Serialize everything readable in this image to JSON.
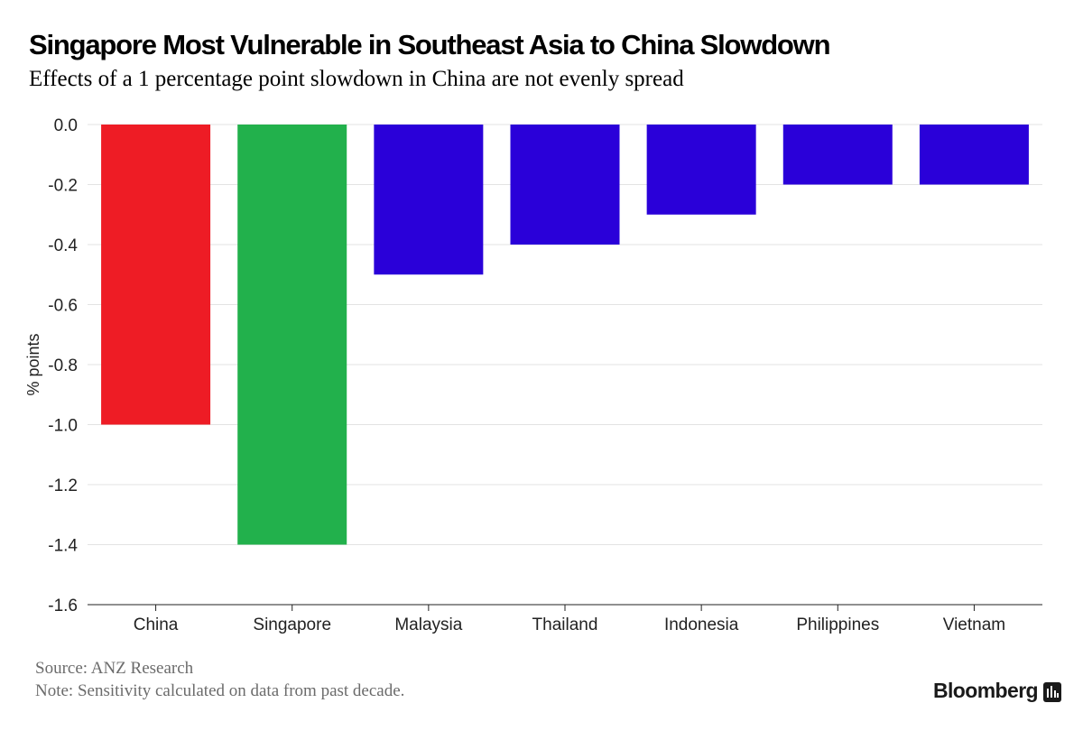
{
  "chart_data": {
    "type": "bar",
    "title": "Singapore Most Vulnerable in Southeast Asia to China Slowdown",
    "subtitle": "Effects of a 1 percentage point slowdown in China are not evenly spread",
    "categories": [
      "China",
      "Singapore",
      "Malaysia",
      "Thailand",
      "Indonesia",
      "Philippines",
      "Vietnam"
    ],
    "values": [
      -1.0,
      -1.4,
      -0.5,
      -0.4,
      -0.3,
      -0.2,
      -0.2
    ],
    "colors": [
      "#ee1c25",
      "#22b14c",
      "#2a00d9",
      "#2a00d9",
      "#2a00d9",
      "#2a00d9",
      "#2a00d9"
    ],
    "xlabel": "",
    "ylabel": "% points",
    "ylim": [
      -1.6,
      0.0
    ],
    "yticks": [
      "0.0",
      "-0.2",
      "-0.4",
      "-0.6",
      "-0.8",
      "-1.0",
      "-1.2",
      "-1.4",
      "-1.6"
    ],
    "grid": true
  },
  "footer": {
    "source": "Source: ANZ Research",
    "note": "Note: Sensitivity calculated on data from past decade."
  },
  "brand": {
    "name": "Bloomberg",
    "icon": "bloomberg-logo-icon"
  }
}
